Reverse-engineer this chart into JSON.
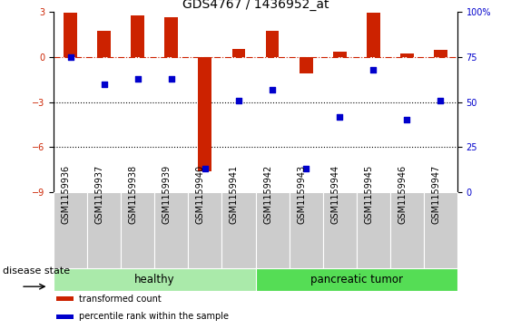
{
  "title": "GDS4767 / 1436952_at",
  "samples": [
    "GSM1159936",
    "GSM1159937",
    "GSM1159938",
    "GSM1159939",
    "GSM1159940",
    "GSM1159941",
    "GSM1159942",
    "GSM1159943",
    "GSM1159944",
    "GSM1159945",
    "GSM1159946",
    "GSM1159947"
  ],
  "transformed_count": [
    2.95,
    1.7,
    2.75,
    2.6,
    -7.6,
    0.5,
    1.75,
    -1.1,
    0.35,
    2.95,
    0.2,
    0.45
  ],
  "percentile_rank": [
    75,
    60,
    63,
    63,
    13,
    51,
    57,
    13,
    42,
    68,
    40,
    51
  ],
  "bar_color": "#cc2200",
  "dot_color": "#0000cc",
  "hline_color": "#cc2200",
  "dotted_line_color": "#000000",
  "ylim_left": [
    -9,
    3
  ],
  "ylim_right": [
    0,
    100
  ],
  "yticks_left": [
    -9,
    -6,
    -3,
    0,
    3
  ],
  "yticks_right": [
    0,
    25,
    50,
    75,
    100
  ],
  "groups": [
    {
      "label": "healthy",
      "start": 0,
      "end": 5,
      "color": "#aaeaaa"
    },
    {
      "label": "pancreatic tumor",
      "start": 6,
      "end": 11,
      "color": "#55dd55"
    }
  ],
  "disease_state_label": "disease state",
  "legend_items": [
    {
      "label": "transformed count",
      "color": "#cc2200"
    },
    {
      "label": "percentile rank within the sample",
      "color": "#0000cc"
    }
  ],
  "bar_width": 0.4,
  "background_color": "#ffffff",
  "tick_area_color": "#cccccc",
  "title_fontsize": 10,
  "tick_fontsize": 7,
  "label_fontsize": 8.5
}
